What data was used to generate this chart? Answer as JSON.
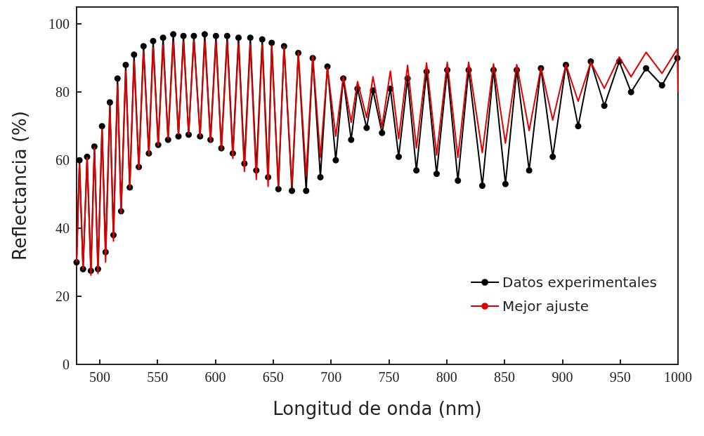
{
  "chart_data": {
    "type": "line",
    "xlabel": "Longitud de onda (nm)",
    "ylabel": "Reflectancia (%)",
    "xlim": [
      480,
      1000
    ],
    "xticks": [
      500,
      550,
      600,
      650,
      700,
      750,
      800,
      850,
      900,
      950,
      1000
    ],
    "ylim": [
      0,
      105
    ],
    "yticks": [
      0,
      20,
      40,
      60,
      80,
      100
    ],
    "grid": false,
    "legend": "bottom right",
    "series": [
      {
        "name": "Datos experimentales",
        "color": "#000000",
        "marker": "circle",
        "x": [
          480,
          482.5,
          485.6,
          489.1,
          492.4,
          495.4,
          498.5,
          502.0,
          505.1,
          508.8,
          511.9,
          515.4,
          518.5,
          522.5,
          526.0,
          529.7,
          533.8,
          537.9,
          542.5,
          546.2,
          550.6,
          554.8,
          559.1,
          563.6,
          568.1,
          572.4,
          576.9,
          581.4,
          586.8,
          590.8,
          595.8,
          600.5,
          605.2,
          610.2,
          615.1,
          620.0,
          625.1,
          630.2,
          635.4,
          640.5,
          645.6,
          648.7,
          654.5,
          659.4,
          666.2,
          671.7,
          678.5,
          684.2,
          690.8,
          696.9,
          704.1,
          710.6,
          717.4,
          722.9,
          730.8,
          736.3,
          744.1,
          751.3,
          758.5,
          766.2,
          773.8,
          782.6,
          791.3,
          800.5,
          809.7,
          819.0,
          830.8,
          840.5,
          850.8,
          860.6,
          871.3,
          881.5,
          891.7,
          903.1,
          913.7,
          924.6,
          936.3,
          949.2,
          959.4,
          972.4,
          986.2,
          999.4
        ],
        "values": [
          30,
          60,
          28,
          61,
          27.5,
          64,
          28,
          70,
          33,
          77,
          38,
          84,
          45,
          88,
          52,
          91,
          58,
          93.5,
          62,
          95,
          64.5,
          96,
          66,
          97,
          67,
          96.5,
          67.5,
          96.5,
          67,
          97,
          66,
          96.5,
          63.5,
          96.5,
          62,
          96,
          59,
          96,
          57,
          95.5,
          55,
          94.5,
          51.5,
          93.5,
          51,
          91.5,
          51,
          90,
          55,
          87.5,
          60,
          84,
          66,
          81,
          69.5,
          80.5,
          68,
          81,
          61,
          84,
          57,
          86,
          56,
          86.5,
          54,
          86.5,
          52.5,
          86.5,
          53,
          86.5,
          57,
          87,
          61,
          88,
          70,
          89,
          76,
          89,
          80,
          87,
          82,
          90
        ]
      },
      {
        "name": "Mejor ajuste",
        "color": "#e00000",
        "marker": "none",
        "x": [
          480,
          482.5,
          485.6,
          489.1,
          492.4,
          495.4,
          498.5,
          502.0,
          505.1,
          508.8,
          511.9,
          515.4,
          518.5,
          522.5,
          526.0,
          529.7,
          533.8,
          537.9,
          542.5,
          546.2,
          550.6,
          554.8,
          559.1,
          563.6,
          568.1,
          572.4,
          576.9,
          581.4,
          586.8,
          590.8,
          595.8,
          600.5,
          605.2,
          610.2,
          615.1,
          620.0,
          625.1,
          630.2,
          635.4,
          640.5,
          645.6,
          648.7,
          654.5,
          659.4,
          666.2,
          671.7,
          678.5,
          684.2,
          690.8,
          696.9,
          704.1,
          710.6,
          717.4,
          722.9,
          730.8,
          736.3,
          744.1,
          751.3,
          758.5,
          766.2,
          773.8,
          782.6,
          791.3,
          800.5,
          809.7,
          819.0,
          830.8,
          840.5,
          850.8,
          860.6,
          871.3,
          881.5,
          891.7,
          903.1,
          913.7,
          924.6,
          936.3,
          949.2,
          959.4,
          972.4,
          986.2,
          999.4,
          1000
        ],
        "values": [
          30,
          58.8,
          27.9,
          60.8,
          26.2,
          63.6,
          26.7,
          69.1,
          30.0,
          75.9,
          36.2,
          82.1,
          44.4,
          86.2,
          51.9,
          89.0,
          57.4,
          92.0,
          61.5,
          93.1,
          64.3,
          93.8,
          66.3,
          94.8,
          67.7,
          94.8,
          67.7,
          95.1,
          67.0,
          95.1,
          65.3,
          94.8,
          63.1,
          94.8,
          60.5,
          94.4,
          56.7,
          94.1,
          54.3,
          93.8,
          52.3,
          93.4,
          52.3,
          93.4,
          52.6,
          91.7,
          55.3,
          90.7,
          60.8,
          87.2,
          67.0,
          84.5,
          71.1,
          83.1,
          72.5,
          84.5,
          69.8,
          86.2,
          66.3,
          87.9,
          63.6,
          88.6,
          61.5,
          88.8,
          60.8,
          88.8,
          62.2,
          88.3,
          65.0,
          88.1,
          68.7,
          87.2,
          71.8,
          88.1,
          77.3,
          88.8,
          81.1,
          90.3,
          84.5,
          91.7,
          85.5,
          92.7,
          80
        ]
      }
    ]
  }
}
